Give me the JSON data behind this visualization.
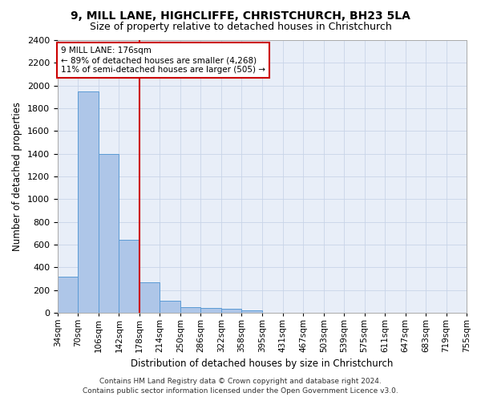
{
  "title1": "9, MILL LANE, HIGHCLIFFE, CHRISTCHURCH, BH23 5LA",
  "title2": "Size of property relative to detached houses in Christchurch",
  "xlabel": "Distribution of detached houses by size in Christchurch",
  "ylabel": "Number of detached properties",
  "footnote1": "Contains HM Land Registry data © Crown copyright and database right 2024.",
  "footnote2": "Contains public sector information licensed under the Open Government Licence v3.0.",
  "annotation_line1": "9 MILL LANE: 176sqm",
  "annotation_line2": "← 89% of detached houses are smaller (4,268)",
  "annotation_line3": "11% of semi-detached houses are larger (505) →",
  "bar_left_edges": [
    34,
    70,
    106,
    142,
    178,
    214,
    250,
    286,
    322,
    358,
    395,
    431,
    467,
    503,
    539,
    575,
    611,
    647,
    683,
    719
  ],
  "bar_heights": [
    320,
    1950,
    1400,
    645,
    270,
    105,
    48,
    40,
    38,
    22,
    0,
    0,
    0,
    0,
    0,
    0,
    0,
    0,
    0,
    0
  ],
  "bin_width": 36,
  "bar_color": "#aec6e8",
  "bar_edge_color": "#5b9bd5",
  "vline_color": "#cc0000",
  "vline_x": 178,
  "annotation_box_color": "#cc0000",
  "tick_labels": [
    "34sqm",
    "70sqm",
    "106sqm",
    "142sqm",
    "178sqm",
    "214sqm",
    "250sqm",
    "286sqm",
    "322sqm",
    "358sqm",
    "395sqm",
    "431sqm",
    "467sqm",
    "503sqm",
    "539sqm",
    "575sqm",
    "611sqm",
    "647sqm",
    "683sqm",
    "719sqm",
    "755sqm"
  ],
  "ylim": [
    0,
    2400
  ],
  "yticks": [
    0,
    200,
    400,
    600,
    800,
    1000,
    1200,
    1400,
    1600,
    1800,
    2000,
    2200,
    2400
  ],
  "bg_color": "#ffffff",
  "plot_bg_color": "#e8eef8",
  "grid_color": "#c8d4e8"
}
